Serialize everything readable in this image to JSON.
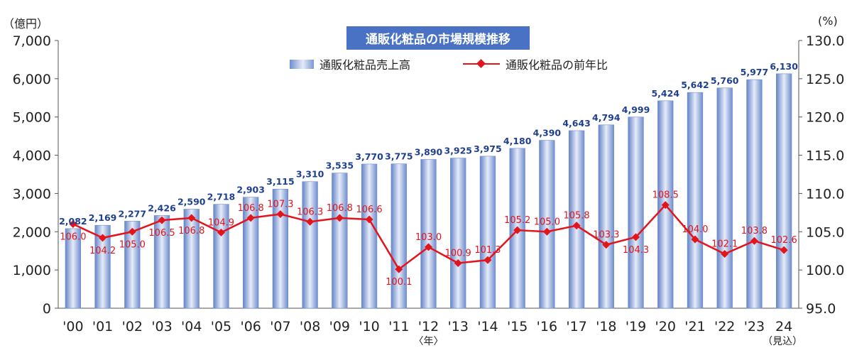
{
  "title": "通販化粧品の市場規模推移",
  "units": {
    "left": "（億円）",
    "right": "(%)"
  },
  "legend": {
    "bar_label": "通販化粧品売上高",
    "line_label": "通販化粧品の前年比"
  },
  "colors": {
    "bar": "#6d8ed0",
    "bar_label": "#1f3f8f",
    "line": "#e3141b",
    "line_label": "#e3141b",
    "title_bg": "#4a72c4"
  },
  "chart_data": {
    "type": "bar+line",
    "categories": [
      "'00",
      "'01",
      "'02",
      "'03",
      "'04",
      "'05",
      "'06",
      "'07",
      "'08",
      "'09",
      "'10",
      "'11",
      "'12",
      "'13",
      "'14",
      "'15",
      "'16",
      "'17",
      "'18",
      "'19",
      "'20",
      "'21",
      "'22",
      "'23",
      "24"
    ],
    "x_unit_note": "〈年〉",
    "last_category_note": "（見込）",
    "series": [
      {
        "name": "通販化粧品売上高",
        "axis": "left",
        "values": [
          2082,
          2169,
          2277,
          2426,
          2590,
          2718,
          2903,
          3115,
          3310,
          3535,
          3770,
          3775,
          3890,
          3925,
          3975,
          4180,
          4390,
          4643,
          4794,
          4999,
          5424,
          5642,
          5760,
          5977,
          6130
        ],
        "labels": [
          "2,082",
          "2,169",
          "2,277",
          "2,426",
          "2,590",
          "2,718",
          "2,903",
          "3,115",
          "3,310",
          "3,535",
          "3,770",
          "3,775",
          "3,890",
          "3,925",
          "3,975",
          "4,180",
          "4,390",
          "4,643",
          "4,794",
          "4,999",
          "5,424",
          "5,642",
          "5,760",
          "5,977",
          "6,130"
        ]
      },
      {
        "name": "通販化粧品の前年比",
        "axis": "right",
        "values": [
          106.0,
          104.2,
          105.0,
          106.5,
          106.8,
          104.9,
          106.8,
          107.3,
          106.3,
          106.8,
          106.6,
          100.1,
          103.0,
          100.9,
          101.3,
          105.2,
          105.0,
          105.8,
          103.3,
          104.3,
          108.5,
          104.0,
          102.1,
          103.8,
          102.6
        ],
        "labels": [
          "106.0",
          "104.2",
          "105.0",
          "106.5",
          "106.8",
          "104.9",
          "106.8",
          "107.3",
          "106.3",
          "106.8",
          "106.6",
          "100.1",
          "103.0",
          "100.9",
          "101.3",
          "105.2",
          "105.0",
          "105.8",
          "103.3",
          "104.3",
          "108.5",
          "104.0",
          "102.1",
          "103.8",
          "102.6"
        ],
        "label_side": [
          "below",
          "below",
          "below",
          "below",
          "below",
          "above",
          "above",
          "above",
          "above",
          "above",
          "above",
          "below",
          "above",
          "above",
          "above",
          "above",
          "above",
          "above",
          "above",
          "below",
          "above",
          "above",
          "above",
          "above",
          "above"
        ]
      }
    ],
    "y_left": {
      "min": 0,
      "max": 7000,
      "step": 1000,
      "tick_labels": [
        "0",
        "1,000",
        "2,000",
        "3,000",
        "4,000",
        "5,000",
        "6,000",
        "7,000"
      ]
    },
    "y_right": {
      "min": 95,
      "max": 130,
      "step": 5,
      "tick_labels": [
        "95.0",
        "100.0",
        "105.0",
        "110.0",
        "115.0",
        "120.0",
        "125.0",
        "130.0"
      ]
    },
    "grid": false,
    "legend_position": "top-center"
  }
}
